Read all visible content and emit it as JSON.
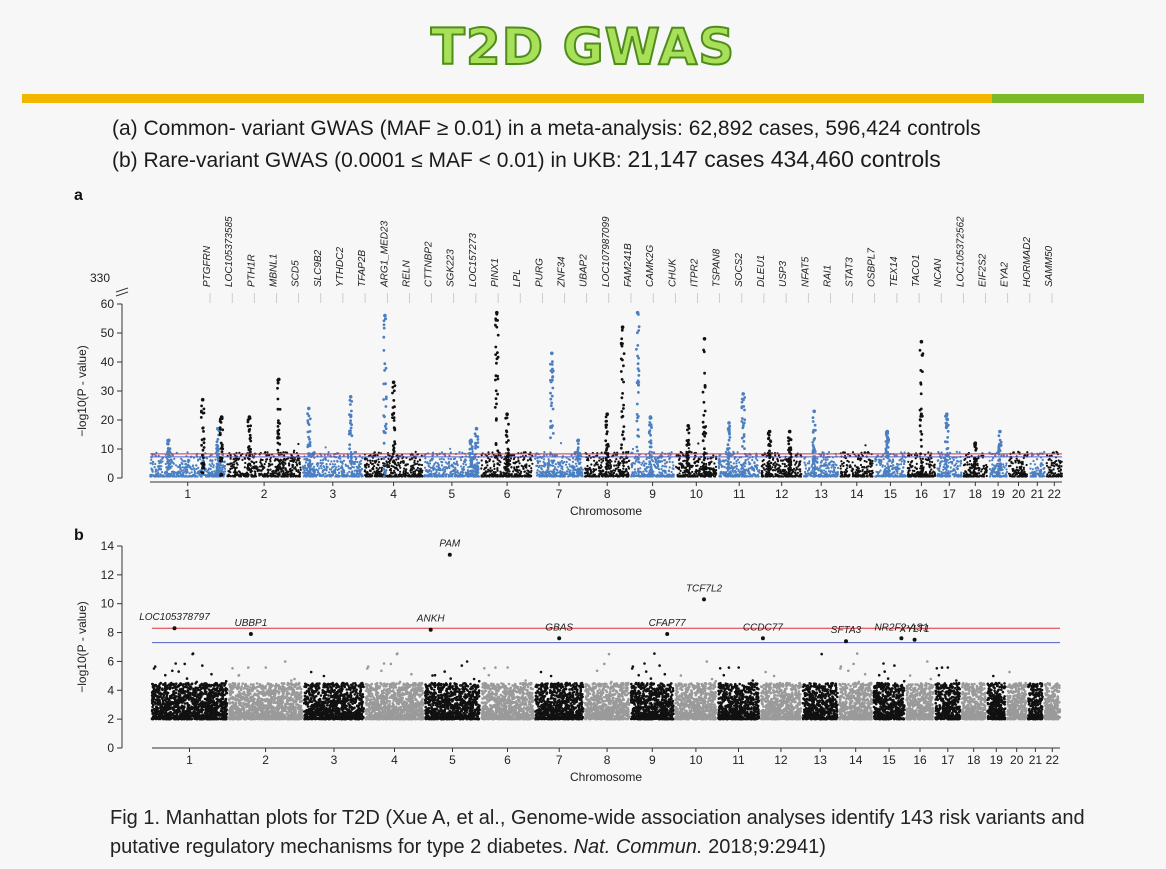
{
  "header": {
    "title": "T2D GWAS",
    "line_a": "(a)  Common- variant GWAS (MAF ≥ 0.01) in a meta-analysis: 62,892 cases, 596,424 controls",
    "line_b_prefix": "(b)  Rare-variant GWAS (0.0001 ≤ MAF < 0.01) in UKB: ",
    "line_b_counts": "21,147 cases 434,460 controls"
  },
  "caption": {
    "pre": "Fig 1. Manhattan plots for T2D (Xue A, et al., Genome-wide association analyses identify 143 risk variants and putative regulatory mechanisms for type 2 diabetes. ",
    "journal": "Nat. Commun.",
    "post": " 2018;9:2941)"
  },
  "colors": {
    "blue": "#4a7fc1",
    "black": "#111111",
    "green": "#2db52d",
    "gray": "#9a9a9a",
    "red_line": "#e0303a",
    "blue_line": "#5060c8",
    "highlight": "#e0303a",
    "title_fill": "#a8e05a",
    "title_stroke": "#4f8d1b"
  },
  "chart_data": [
    {
      "panel": "a",
      "type": "scatter",
      "xlabel": "Chromosome",
      "ylabel": "−log10(P - value)",
      "ylim": [
        0,
        60
      ],
      "yticks": [
        0,
        10,
        20,
        30,
        40,
        50,
        60
      ],
      "ybreak_label": "330",
      "chromosomes": [
        "1",
        "2",
        "3",
        "4",
        "5",
        "6",
        "7",
        "8",
        "9",
        "10",
        "11",
        "12",
        "13",
        "14",
        "15",
        "16",
        "17",
        "18",
        "19",
        "20",
        "21",
        "22"
      ],
      "chrom_colors": [
        "blue",
        "black",
        "blue",
        "black",
        "blue",
        "black",
        "blue",
        "black",
        "blue",
        "black",
        "blue",
        "black",
        "blue",
        "black",
        "blue",
        "black",
        "blue",
        "black",
        "blue",
        "black",
        "blue",
        "black"
      ],
      "significance_lines": [
        8.3,
        7.3
      ],
      "peaks": [
        {
          "chrom": "1",
          "pos": 0.25,
          "y": 13,
          "c": "blue"
        },
        {
          "chrom": "1",
          "pos": 0.9,
          "y": 17,
          "c": "blue"
        },
        {
          "chrom": "1",
          "pos": 0.7,
          "y": 27,
          "c": "black"
        },
        {
          "chrom": "1",
          "pos": 0.95,
          "y": 21,
          "c": "black"
        },
        {
          "chrom": "2",
          "pos": 0.3,
          "y": 21,
          "c": "black"
        },
        {
          "chrom": "2",
          "pos": 0.7,
          "y": 34,
          "c": "black"
        },
        {
          "chrom": "3",
          "pos": 0.1,
          "y": 24,
          "c": "blue"
        },
        {
          "chrom": "3",
          "pos": 0.8,
          "y": 28,
          "c": "blue"
        },
        {
          "chrom": "4",
          "pos": 0.35,
          "y": 56,
          "c": "blue"
        },
        {
          "chrom": "4",
          "pos": 0.5,
          "y": 33,
          "c": "black"
        },
        {
          "chrom": "5",
          "pos": 0.85,
          "y": 13,
          "c": "blue"
        },
        {
          "chrom": "5",
          "pos": 0.95,
          "y": 17,
          "c": "blue"
        },
        {
          "chrom": "6",
          "pos": 0.3,
          "y": 57,
          "c": "black"
        },
        {
          "chrom": "6",
          "pos": 0.5,
          "y": 22,
          "c": "black"
        },
        {
          "chrom": "7",
          "pos": 0.35,
          "y": 43,
          "c": "blue"
        },
        {
          "chrom": "7",
          "pos": 0.9,
          "y": 13,
          "c": "blue"
        },
        {
          "chrom": "8",
          "pos": 0.5,
          "y": 22,
          "c": "black"
        },
        {
          "chrom": "8",
          "pos": 0.85,
          "y": 52,
          "c": "black"
        },
        {
          "chrom": "9",
          "pos": 0.15,
          "y": 57,
          "c": "blue"
        },
        {
          "chrom": "9",
          "pos": 0.45,
          "y": 21,
          "c": "blue"
        },
        {
          "chrom": "10",
          "pos": 0.7,
          "y": 48,
          "c": "black"
        },
        {
          "chrom": "10",
          "pos": 0.3,
          "y": 18,
          "c": "black"
        },
        {
          "chrom": "11",
          "pos": 0.25,
          "y": 19,
          "c": "blue"
        },
        {
          "chrom": "11",
          "pos": 0.6,
          "y": 29,
          "c": "blue"
        },
        {
          "chrom": "12",
          "pos": 0.2,
          "y": 16,
          "c": "black"
        },
        {
          "chrom": "12",
          "pos": 0.7,
          "y": 16,
          "c": "black"
        },
        {
          "chrom": "13",
          "pos": 0.3,
          "y": 23,
          "c": "blue"
        },
        {
          "chrom": "15",
          "pos": 0.4,
          "y": 16,
          "c": "blue"
        },
        {
          "chrom": "16",
          "pos": 0.5,
          "y": 47,
          "c": "black"
        },
        {
          "chrom": "17",
          "pos": 0.4,
          "y": 22,
          "c": "blue"
        },
        {
          "chrom": "18",
          "pos": 0.5,
          "y": 12,
          "c": "black"
        },
        {
          "chrom": "19",
          "pos": 0.6,
          "y": 16,
          "c": "blue"
        }
      ],
      "gene_labels": [
        "PTGFRN",
        "LOC105373585",
        "PTH1R",
        "MBNL1",
        "SCD5",
        "SLC9B2",
        "YTHDC2",
        "TFAP2B",
        "ARG1_MED23",
        "RELN",
        "CTTNBP2",
        "SGK223",
        "LOC157273",
        "PINX1",
        "LPL",
        "PURG",
        "ZNF34",
        "UBAP2",
        "LOC107987099",
        "FAM241B",
        "CAMK2G",
        "CHUK",
        "ITPR2",
        "TSPAN8",
        "SOCS2",
        "DLEU1",
        "USP3",
        "NFAT5",
        "RAI1",
        "STAT3",
        "OSBPL7",
        "TEX14",
        "TACO1",
        "NCAN",
        "LOC105372562",
        "EIF2S2",
        "EYA2",
        "HORMAD2",
        "SAMM50"
      ]
    },
    {
      "panel": "b",
      "type": "scatter",
      "xlabel": "Chromosome",
      "ylabel": "−log10(P - value)",
      "ylim": [
        0,
        14
      ],
      "yticks": [
        0,
        2,
        4,
        6,
        8,
        10,
        12,
        14
      ],
      "chromosomes": [
        "1",
        "2",
        "3",
        "4",
        "5",
        "6",
        "7",
        "8",
        "9",
        "10",
        "11",
        "12",
        "13",
        "14",
        "15",
        "16",
        "17",
        "18",
        "19",
        "20",
        "21",
        "22"
      ],
      "chrom_colors": [
        "black",
        "gray",
        "black",
        "gray",
        "black",
        "gray",
        "black",
        "gray",
        "black",
        "gray",
        "black",
        "gray",
        "black",
        "gray",
        "black",
        "gray",
        "black",
        "gray",
        "black",
        "gray",
        "black",
        "gray"
      ],
      "significance_lines": [
        8.3,
        7.3
      ],
      "labeled_hits": [
        {
          "gene": "LOC105378797",
          "chrom": "1",
          "pos": 0.3,
          "y": 8.3,
          "highlight": true
        },
        {
          "gene": "UBBP1",
          "chrom": "2",
          "pos": 0.3,
          "y": 7.9,
          "highlight": false
        },
        {
          "gene": "ANKH",
          "chrom": "5",
          "pos": 0.1,
          "y": 8.2,
          "highlight": true
        },
        {
          "gene": "PAM",
          "chrom": "5",
          "pos": 0.45,
          "y": 13.4,
          "highlight": true
        },
        {
          "gene": "GBAS",
          "chrom": "7",
          "pos": 0.5,
          "y": 7.6,
          "highlight": false
        },
        {
          "gene": "CFAP77",
          "chrom": "9",
          "pos": 0.85,
          "y": 7.9,
          "highlight": false
        },
        {
          "gene": "TCF7L2",
          "chrom": "10",
          "pos": 0.7,
          "y": 10.3,
          "highlight": true
        },
        {
          "gene": "CCDC77",
          "chrom": "12",
          "pos": 0.05,
          "y": 7.6,
          "highlight": false
        },
        {
          "gene": "SFTA3",
          "chrom": "14",
          "pos": 0.2,
          "y": 7.4,
          "highlight": false
        },
        {
          "gene": "NR2F2-AS1",
          "chrom": "15",
          "pos": 0.9,
          "y": 7.6,
          "highlight": false
        },
        {
          "gene": "XYLT1",
          "chrom": "16",
          "pos": 0.3,
          "y": 7.5,
          "highlight": false
        }
      ]
    }
  ]
}
